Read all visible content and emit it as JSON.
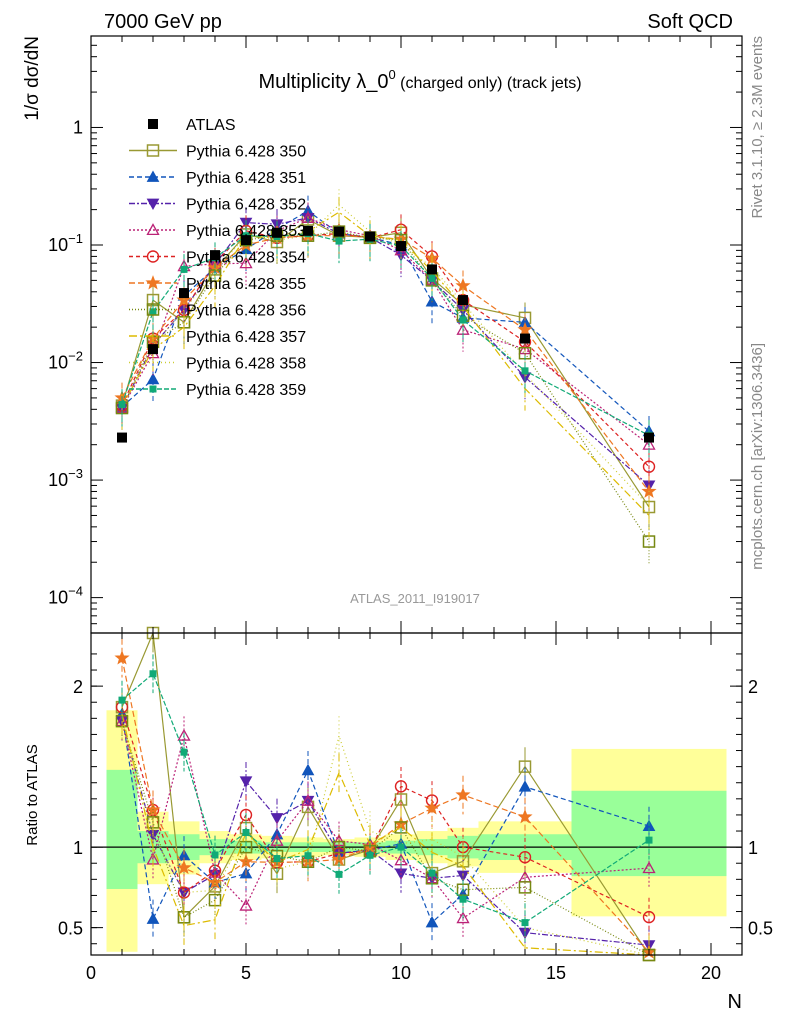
{
  "header": {
    "left": "7000 GeV pp",
    "right": "Soft QCD"
  },
  "side_labels": {
    "top": "Rivet 3.1.10, ≥ 2.3M events",
    "bottom": "mcplots.cern.ch [arXiv:1306.3436]"
  },
  "chart_data": [
    {
      "type": "scatter",
      "panel": "main",
      "title_main": "Multiplicity λ_0",
      "title_sup": "0",
      "title_tail": " (charged only) (track jets)",
      "watermark": "ATLAS_2011_I919017",
      "ylabel": "1/σ dσ/dN",
      "xlim": [
        0,
        21
      ],
      "ylim": [
        5e-05,
        6
      ],
      "yscale": "log",
      "x_ticks": [
        0,
        5,
        10,
        15,
        20
      ],
      "y_ticks": [
        {
          "value": 0.0001,
          "base": "10",
          "exp": "−4"
        },
        {
          "value": 0.001,
          "base": "10",
          "exp": "−3"
        },
        {
          "value": 0.01,
          "base": "10",
          "exp": "−2"
        },
        {
          "value": 0.1,
          "base": "10",
          "exp": "−1"
        },
        {
          "value": 1,
          "base": "1",
          "exp": ""
        }
      ],
      "legend_position": "top-left",
      "x": [
        1,
        2,
        3,
        4,
        5,
        6,
        7,
        8,
        9,
        10,
        11,
        12,
        14,
        18
      ],
      "data": {
        "name": "ATLAS",
        "values": [
          0.0023,
          0.013,
          0.039,
          0.082,
          0.11,
          0.127,
          0.132,
          0.13,
          0.118,
          0.098,
          0.062,
          0.034,
          0.016,
          0.0023
        ]
      },
      "series": [
        {
          "name": "Pythia 6.428 350",
          "color": "#999933",
          "dash": "",
          "marker": "square-open",
          "values": [
            0.0043,
            0.034,
            0.022,
            0.062,
            0.123,
            0.106,
            0.165,
            0.12,
            0.116,
            0.127,
            0.052,
            0.031,
            0.024,
            0.00059
          ]
        },
        {
          "name": "Pythia 6.428 351",
          "color": "#1155bb",
          "dash": "5,3",
          "marker": "triangle-up",
          "values": [
            0.0042,
            0.0072,
            0.037,
            0.064,
            0.092,
            0.137,
            0.195,
            0.125,
            0.116,
            0.1,
            0.033,
            0.024,
            0.022,
            0.0026
          ]
        },
        {
          "name": "Pythia 6.428 352",
          "color": "#5522aa",
          "dash": "6,2,2,2",
          "marker": "triangle-down",
          "values": [
            0.0041,
            0.014,
            0.028,
            0.068,
            0.155,
            0.15,
            0.17,
            0.125,
            0.116,
            0.082,
            0.05,
            0.028,
            0.0075,
            0.0009
          ]
        },
        {
          "name": "Pythia 6.428 353",
          "color": "#bb2277",
          "dash": "2,2",
          "marker": "triangle-open",
          "values": [
            0.0041,
            0.012,
            0.066,
            0.069,
            0.07,
            0.132,
            0.17,
            0.135,
            0.12,
            0.09,
            0.05,
            0.019,
            0.013,
            0.002
          ]
        },
        {
          "name": "Pythia 6.428 354",
          "color": "#dd2222",
          "dash": "4,3",
          "marker": "circle-open",
          "values": [
            0.0043,
            0.016,
            0.028,
            0.07,
            0.132,
            0.115,
            0.12,
            0.125,
            0.115,
            0.135,
            0.08,
            0.034,
            0.015,
            0.0013
          ]
        },
        {
          "name": "Pythia 6.428 355",
          "color": "#ee7722",
          "dash": "6,3",
          "marker": "star",
          "values": [
            0.005,
            0.016,
            0.034,
            0.064,
            0.1,
            0.115,
            0.12,
            0.12,
            0.118,
            0.112,
            0.077,
            0.045,
            0.019,
            0.0008
          ]
        },
        {
          "name": "Pythia 6.428 356",
          "color": "#778811",
          "dash": "1,2",
          "marker": "square-open",
          "values": [
            0.0041,
            0.015,
            0.022,
            0.055,
            0.11,
            0.12,
            0.12,
            0.13,
            0.115,
            0.11,
            0.05,
            0.025,
            0.012,
            0.0003
          ]
        },
        {
          "name": "Pythia 6.428 357",
          "color": "#ddbb00",
          "dash": "8,3,2,3",
          "marker": "none",
          "values": [
            0.0042,
            0.013,
            0.02,
            0.045,
            0.12,
            0.115,
            0.13,
            0.19,
            0.12,
            0.11,
            0.06,
            0.03,
            0.006,
            0.0005
          ]
        },
        {
          "name": "Pythia 6.428 358",
          "color": "#cccc33",
          "dash": "1,3",
          "marker": "none",
          "values": [
            0.0041,
            0.014,
            0.028,
            0.06,
            0.12,
            0.11,
            0.12,
            0.22,
            0.13,
            0.1,
            0.065,
            0.032,
            0.008,
            0.0006
          ]
        },
        {
          "name": "Pythia 6.428 359",
          "color": "#11aa77",
          "dash": "5,2",
          "marker": "square-small",
          "values": [
            0.0044,
            0.027,
            0.062,
            0.078,
            0.12,
            0.118,
            0.125,
            0.108,
            0.112,
            0.098,
            0.052,
            0.023,
            0.0085,
            0.0024
          ]
        }
      ]
    },
    {
      "type": "scatter",
      "panel": "ratio",
      "ylabel": "Ratio to ATLAS",
      "xlabel": "N",
      "xlim": [
        0,
        21
      ],
      "ylim": [
        0.33,
        2.33
      ],
      "y_ticks": [
        {
          "value": 0.5,
          "label": "0.5"
        },
        {
          "value": 1,
          "label": "1"
        },
        {
          "value": 2,
          "label": "2"
        }
      ],
      "x_ticks": [
        {
          "value": 0,
          "label": "0"
        },
        {
          "value": 5,
          "label": "5"
        },
        {
          "value": 10,
          "label": "10"
        },
        {
          "value": 15,
          "label": "15"
        },
        {
          "value": 20,
          "label": "20"
        }
      ],
      "uncertainty_bands": [
        {
          "x0": 0.5,
          "x1": 1.5,
          "stat_lo": 0.74,
          "stat_hi": 1.48,
          "tot_lo": 0.35,
          "tot_hi": 1.85
        },
        {
          "x0": 1.5,
          "x1": 2.5,
          "stat_lo": 0.9,
          "stat_hi": 1.1,
          "tot_lo": 0.77,
          "tot_hi": 1.22
        },
        {
          "x0": 2.5,
          "x1": 3.5,
          "stat_lo": 0.92,
          "stat_hi": 1.08,
          "tot_lo": 0.83,
          "tot_hi": 1.16
        },
        {
          "x0": 3.5,
          "x1": 4.5,
          "stat_lo": 0.95,
          "stat_hi": 1.05,
          "tot_lo": 0.9,
          "tot_hi": 1.1
        },
        {
          "x0": 4.5,
          "x1": 5.5,
          "stat_lo": 0.96,
          "stat_hi": 1.04,
          "tot_lo": 0.92,
          "tot_hi": 1.08
        },
        {
          "x0": 5.5,
          "x1": 6.5,
          "stat_lo": 0.97,
          "stat_hi": 1.03,
          "tot_lo": 0.93,
          "tot_hi": 1.07
        },
        {
          "x0": 6.5,
          "x1": 7.5,
          "stat_lo": 0.97,
          "stat_hi": 1.03,
          "tot_lo": 0.94,
          "tot_hi": 1.06
        },
        {
          "x0": 7.5,
          "x1": 8.5,
          "stat_lo": 0.97,
          "stat_hi": 1.03,
          "tot_lo": 0.95,
          "tot_hi": 1.05
        },
        {
          "x0": 8.5,
          "x1": 9.5,
          "stat_lo": 0.97,
          "stat_hi": 1.03,
          "tot_lo": 0.94,
          "tot_hi": 1.06
        },
        {
          "x0": 9.5,
          "x1": 10.5,
          "stat_lo": 0.96,
          "stat_hi": 1.04,
          "tot_lo": 0.92,
          "tot_hi": 1.08
        },
        {
          "x0": 10.5,
          "x1": 11.5,
          "stat_lo": 0.95,
          "stat_hi": 1.05,
          "tot_lo": 0.9,
          "tot_hi": 1.1
        },
        {
          "x0": 11.5,
          "x1": 12.5,
          "stat_lo": 0.93,
          "stat_hi": 1.07,
          "tot_lo": 0.88,
          "tot_hi": 1.12
        },
        {
          "x0": 12.5,
          "x1": 15.5,
          "stat_lo": 0.92,
          "stat_hi": 1.08,
          "tot_lo": 0.84,
          "tot_hi": 1.16
        },
        {
          "x0": 15.5,
          "x1": 20.5,
          "stat_lo": 0.82,
          "stat_hi": 1.35,
          "tot_lo": 0.57,
          "tot_hi": 1.61
        }
      ]
    }
  ]
}
